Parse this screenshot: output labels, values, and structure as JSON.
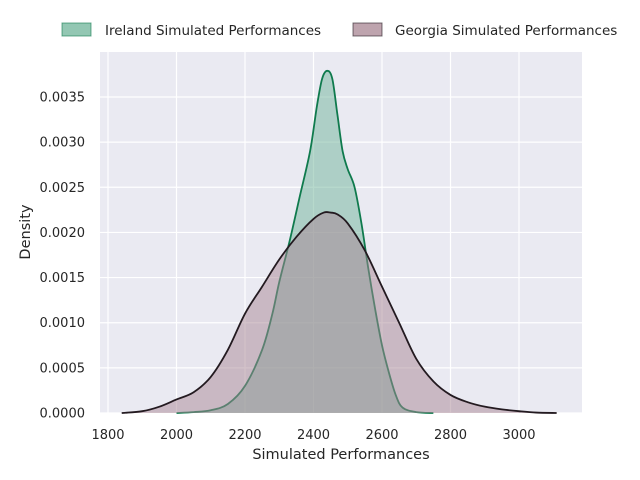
{
  "chart_data": {
    "type": "area",
    "title": "",
    "xlabel": "Simulated Performances",
    "ylabel": "Density",
    "xlim": [
      1800,
      3000
    ],
    "ylim": [
      0,
      0.0039
    ],
    "x_ticks": [
      1800,
      2000,
      2200,
      2400,
      2600,
      2800,
      3000
    ],
    "y_ticks": [
      0,
      0.0005,
      0.001,
      0.0015,
      0.002,
      0.0025,
      0.003,
      0.0035
    ],
    "y_tick_labels": [
      "0.0000",
      "0.0005",
      "0.0010",
      "0.0015",
      "0.0020",
      "0.0025",
      "0.0030",
      "0.0035"
    ],
    "grid": true,
    "legend_position": "top",
    "series": [
      {
        "name": "Ireland Simulated Performances",
        "fill_color": "#6fb49a",
        "line_color": "#0f7a4d",
        "x": [
          2000,
          2050,
          2100,
          2150,
          2200,
          2250,
          2280,
          2300,
          2330,
          2360,
          2390,
          2410,
          2425,
          2440,
          2455,
          2470,
          2485,
          2500,
          2520,
          2540,
          2560,
          2580,
          2600,
          2620,
          2640,
          2660,
          2700,
          2750
        ],
        "y": [
          0,
          1e-05,
          3e-05,
          0.0001,
          0.0003,
          0.0007,
          0.0011,
          0.00145,
          0.0019,
          0.0024,
          0.0029,
          0.0034,
          0.0037,
          0.00379,
          0.0037,
          0.0033,
          0.0029,
          0.0027,
          0.0025,
          0.0021,
          0.0016,
          0.00115,
          0.00075,
          0.00045,
          0.0002,
          6e-05,
          1e-05,
          0
        ]
      },
      {
        "name": "Georgia Simulated Performances",
        "fill_color": "#a88593",
        "line_color": "#231a20",
        "x": [
          1840,
          1900,
          1950,
          2000,
          2050,
          2100,
          2150,
          2200,
          2250,
          2300,
          2350,
          2400,
          2430,
          2450,
          2470,
          2500,
          2550,
          2600,
          2650,
          2700,
          2750,
          2800,
          2850,
          2900,
          2950,
          3000,
          3050,
          3110
        ],
        "y": [
          0,
          2e-05,
          7e-05,
          0.00015,
          0.00023,
          0.0004,
          0.0007,
          0.0011,
          0.0014,
          0.0017,
          0.00195,
          0.00215,
          0.00222,
          0.00222,
          0.0022,
          0.0021,
          0.0018,
          0.0014,
          0.001,
          0.0006,
          0.00035,
          0.0002,
          0.00012,
          7e-05,
          4e-05,
          2e-05,
          5e-06,
          0
        ]
      }
    ]
  }
}
